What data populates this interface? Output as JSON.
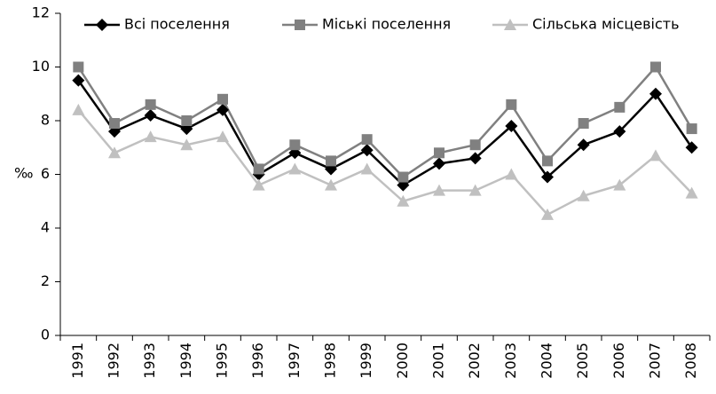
{
  "chart_data": {
    "type": "line",
    "y_label": "‰",
    "categories": [
      "1991",
      "1992",
      "1993",
      "1994",
      "1995",
      "1996",
      "1997",
      "1998",
      "1999",
      "2000",
      "2001",
      "2002",
      "2003",
      "2004",
      "2005",
      "2006",
      "2007",
      "2008"
    ],
    "series": [
      {
        "name": "Всі поселення",
        "color": "#000000",
        "marker": "diamond",
        "values": [
          9.5,
          7.6,
          8.2,
          7.7,
          8.4,
          6.0,
          6.8,
          6.2,
          6.9,
          5.6,
          6.4,
          6.6,
          7.8,
          5.9,
          7.1,
          7.6,
          9.0,
          7.0
        ]
      },
      {
        "name": "Міські поселення",
        "color": "#808080",
        "marker": "square",
        "values": [
          10.0,
          7.9,
          8.6,
          8.0,
          8.8,
          6.2,
          7.1,
          6.5,
          7.3,
          5.9,
          6.8,
          7.1,
          8.6,
          6.5,
          7.9,
          8.5,
          10.0,
          7.7
        ]
      },
      {
        "name": "Сільська місцевість",
        "color": "#c0c0c0",
        "marker": "triangle",
        "values": [
          8.4,
          6.8,
          7.4,
          7.1,
          7.4,
          5.6,
          6.2,
          5.6,
          6.2,
          5.0,
          5.4,
          5.4,
          6.0,
          4.5,
          5.2,
          5.6,
          6.7,
          5.3
        ]
      }
    ],
    "ylim": [
      0,
      12
    ],
    "yticks": [
      0,
      2,
      4,
      6,
      8,
      10,
      12
    ],
    "grid": false,
    "legend": "top"
  }
}
